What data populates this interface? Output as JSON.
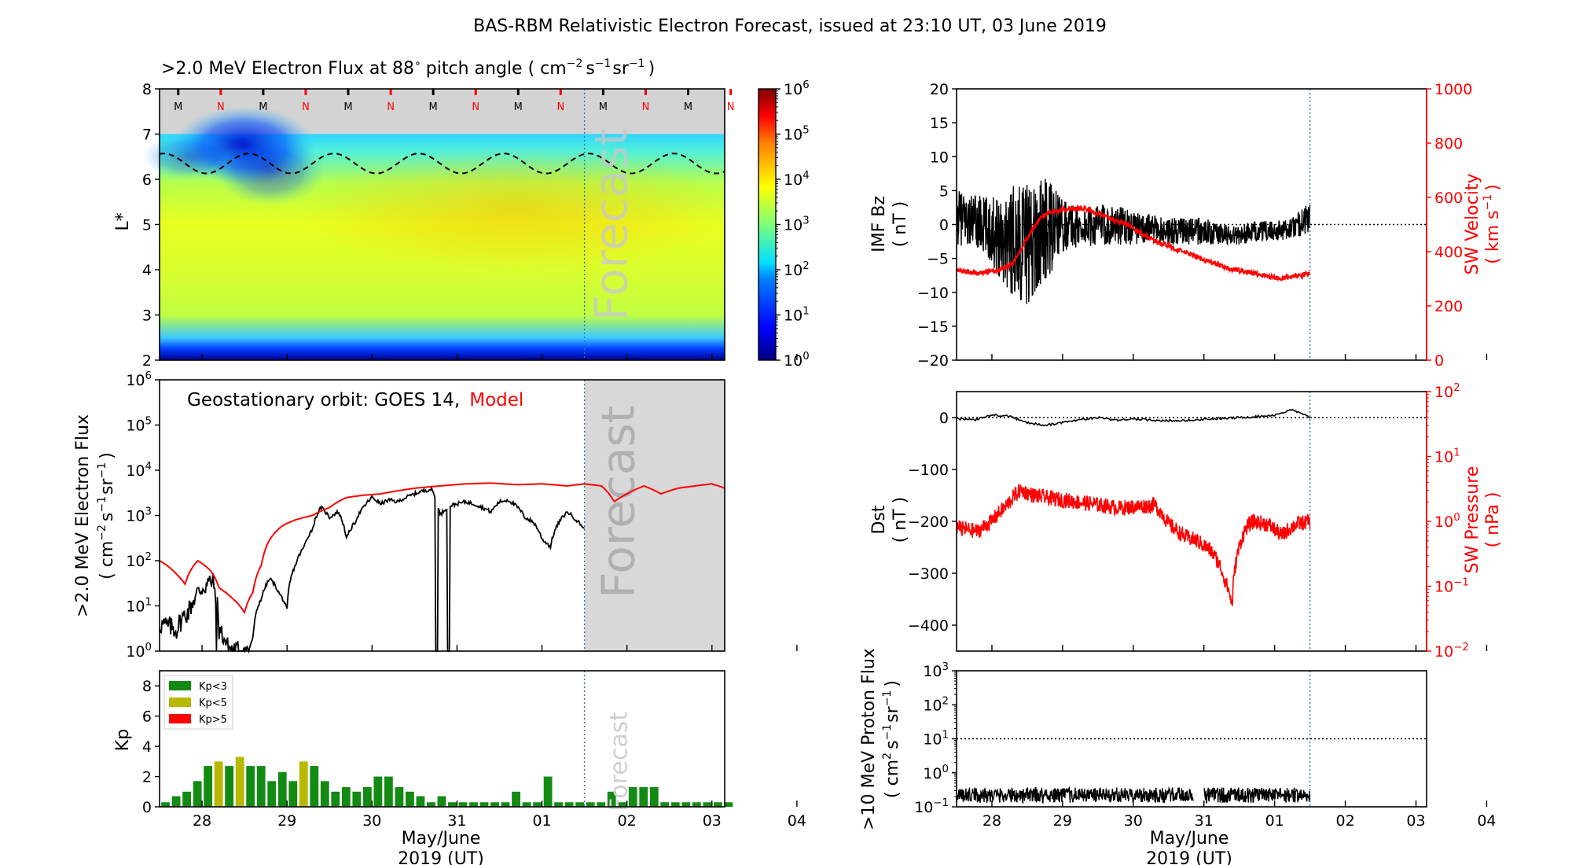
{
  "figure": {
    "title": "BAS-RBM Relativistic Electron Forecast, issued at 23:10 UT, 03 June 2019"
  },
  "colors": {
    "black": "#000000",
    "red": "#ff0000",
    "forecast_gray": "#d8d8d8",
    "boundary_blue": "#1f77b4",
    "kp_green": "#138a13",
    "kp_yellow": "#b8b800",
    "kp_red": "#ff0000"
  },
  "day_labels": [
    "28",
    "29",
    "30",
    "31",
    "01",
    "02",
    "03",
    "04"
  ],
  "x_axis": {
    "label_line1": "May/June",
    "label_line2": "2019 (UT)"
  },
  "chart_data": [
    {
      "id": "heatmap",
      "type": "heatmap",
      "title_text": ">2.0 MeV Electron Flux at 88",
      "title_deg": "∘",
      "title_units": "pitch angle ( cm",
      "title_units_exps": [
        "−2",
        "−1",
        "−1"
      ],
      "ylabel": "L*",
      "ylim": [
        2,
        8
      ],
      "yticks": [
        2,
        3,
        4,
        5,
        6,
        7,
        8
      ],
      "x_range_days": [
        0,
        6.65
      ],
      "forecast_start_day": 5.0,
      "forecast_label": "Forecast",
      "orbit_markers": [
        "M",
        "N",
        "M",
        "N",
        "M",
        "N",
        "M",
        "N",
        "M",
        "N",
        "M",
        "N",
        "M",
        "N"
      ],
      "colorbar_log_range": [
        0,
        6
      ],
      "colorbar_ticks": [
        "10^0",
        "10^1",
        "10^2",
        "10^3",
        "10^4",
        "10^5",
        "10^6"
      ],
      "magnetopause_L_mean": 6.35,
      "magnetopause_L_amp": 0.22
    },
    {
      "id": "geo_flux",
      "type": "line",
      "ylabel_line1": ">2.0 MeV Electron Flux",
      "ylabel_line2": "( cm",
      "ylog_range": [
        0,
        6
      ],
      "yticks": [
        "10^0",
        "10^1",
        "10^2",
        "10^3",
        "10^4",
        "10^5",
        "10^6"
      ],
      "legend_prefix": "Geostationary orbit:   GOES 14,",
      "legend_model": "Model",
      "forecast_label": "Forecast",
      "series": [
        {
          "name": "GOES 14",
          "color": "#000000",
          "x_days": [
            0,
            0.2,
            0.35,
            0.5,
            0.62,
            0.7,
            0.8,
            0.9,
            1.0,
            1.05,
            1.1,
            1.2,
            1.3,
            1.4,
            1.5,
            1.6,
            1.7,
            1.8,
            1.9,
            2.0,
            2.1,
            2.2,
            2.3,
            2.4,
            2.5,
            2.6,
            2.7,
            2.8,
            2.9,
            3.0,
            3.1,
            3.2,
            3.3,
            3.4,
            3.5,
            3.6,
            3.7,
            3.8,
            3.9,
            4.0,
            4.1,
            4.2,
            4.3,
            4.4,
            4.5,
            4.6,
            4.7,
            4.8,
            4.9,
            5.0
          ],
          "y_values": [
            4,
            3,
            8,
            25,
            35,
            3,
            1.2,
            1,
            1,
            1,
            2,
            15,
            40,
            20,
            8,
            80,
            200,
            500,
            1500,
            900,
            1200,
            300,
            700,
            1500,
            2500,
            1800,
            2200,
            2000,
            2500,
            3000,
            3500,
            3800,
            1000,
            1600,
            1800,
            2000,
            1800,
            1500,
            1200,
            2000,
            2200,
            1600,
            900,
            700,
            300,
            200,
            700,
            1200,
            800,
            500
          ]
        },
        {
          "name": "Model",
          "color": "#ff0000",
          "x_days": [
            0,
            0.2,
            0.3,
            0.45,
            0.6,
            0.7,
            0.85,
            1.0,
            1.1,
            1.2,
            1.3,
            1.45,
            1.6,
            1.8,
            2.0,
            2.2,
            2.4,
            2.6,
            2.8,
            3.0,
            3.3,
            3.6,
            3.9,
            4.2,
            4.5,
            4.8,
            5.0,
            5.2,
            5.35,
            5.5,
            5.7,
            5.9,
            6.1,
            6.3,
            6.5,
            6.65
          ],
          "y_values": [
            100,
            50,
            30,
            100,
            60,
            25,
            15,
            7,
            20,
            80,
            300,
            600,
            800,
            1000,
            1500,
            2500,
            2800,
            3000,
            3500,
            4000,
            4500,
            5000,
            5200,
            4800,
            5000,
            4500,
            5000,
            4500,
            2000,
            3000,
            4500,
            3000,
            4000,
            4500,
            5000,
            4000
          ]
        }
      ]
    },
    {
      "id": "kp",
      "type": "bar",
      "ylabel": "Kp",
      "ylim": [
        0,
        9
      ],
      "yticks": [
        0,
        2,
        4,
        6,
        8
      ],
      "legend": [
        {
          "label": "Kp<3",
          "color": "#138a13"
        },
        {
          "label": "Kp<5",
          "color": "#b8b800"
        },
        {
          "label": "Kp>5",
          "color": "#ff0000"
        }
      ],
      "forecast_label": "Forecast",
      "bar_width_days": 0.1,
      "x_days": [
        0.0,
        0.125,
        0.25,
        0.375,
        0.5,
        0.625,
        0.75,
        0.875,
        1.0,
        1.125,
        1.25,
        1.375,
        1.5,
        1.625,
        1.75,
        1.875,
        2.0,
        2.125,
        2.25,
        2.375,
        2.5,
        2.625,
        2.75,
        2.875,
        3.0,
        3.125,
        3.25,
        3.375,
        3.5,
        3.625,
        3.75,
        3.875,
        4.0,
        4.125,
        4.25,
        4.375,
        4.5,
        4.625,
        4.75,
        4.875,
        5.0,
        5.125,
        5.25,
        5.375,
        5.5,
        5.625,
        5.75,
        5.875,
        6.0,
        6.125,
        6.25,
        6.375,
        6.5,
        6.625
      ],
      "values": [
        0.3,
        0.7,
        1.0,
        1.7,
        2.7,
        3.0,
        2.7,
        3.3,
        2.7,
        2.7,
        1.7,
        2.3,
        1.7,
        3.0,
        2.7,
        1.7,
        1.0,
        1.3,
        1.0,
        1.3,
        2.0,
        2.0,
        1.3,
        1.0,
        0.7,
        0.3,
        0.7,
        0.3,
        0.3,
        0.3,
        0.3,
        0.3,
        0.3,
        1.0,
        0.3,
        0.3,
        2.0,
        0.3,
        0.3,
        0.3,
        0.3,
        0.3,
        1.0,
        0.3,
        1.3,
        1.3,
        1.3,
        0.3,
        0.3,
        0.3,
        0.3,
        0.3,
        0.3,
        0.3
      ],
      "colors": [
        "g",
        "g",
        "g",
        "g",
        "g",
        "y",
        "g",
        "y",
        "g",
        "g",
        "g",
        "g",
        "g",
        "y",
        "g",
        "g",
        "g",
        "g",
        "g",
        "g",
        "g",
        "g",
        "g",
        "g",
        "g",
        "g",
        "g",
        "g",
        "g",
        "g",
        "g",
        "g",
        "g",
        "g",
        "g",
        "g",
        "g",
        "g",
        "g",
        "g",
        "g",
        "g",
        "g",
        "g",
        "g",
        "g",
        "g",
        "g",
        "g",
        "g",
        "g",
        "g",
        "g",
        "g"
      ]
    },
    {
      "id": "imf",
      "type": "line",
      "ylabel_left_line1": "IMF Bz",
      "ylabel_left_line2": "( nT )",
      "ylim_left": [
        -20,
        20
      ],
      "yticks_left": [
        "−20",
        "−15",
        "−10",
        "−5",
        "0",
        "5",
        "10",
        "15",
        "20"
      ],
      "ylabel_right_line1": "SW Velocity",
      "ylabel_right_line2": "( km s",
      "ylabel_right_exp": "−1",
      "ylim_right": [
        0,
        1000
      ],
      "yticks_right": [
        "0",
        "200",
        "400",
        "600",
        "800",
        "1000"
      ],
      "series": [
        {
          "name": "IMF Bz",
          "color": "#000000",
          "x_days": [
            0,
            0.25,
            0.5,
            0.75,
            1.0,
            1.25,
            1.5,
            1.75,
            2.0,
            2.25,
            2.5,
            2.75,
            3.0,
            3.25,
            3.5,
            3.75,
            4.0,
            4.25,
            4.5,
            4.75,
            5.0
          ],
          "y_values": [
            1,
            0.5,
            -1,
            -2,
            -3,
            -1,
            0,
            -0.5,
            0,
            0,
            -0.5,
            -0.5,
            -1,
            -1,
            -1,
            -1.5,
            -1.5,
            -1,
            -1,
            -0.5,
            1
          ],
          "noise_amp": [
            4,
            4,
            5,
            8,
            9,
            8,
            4,
            3,
            3,
            3,
            2.5,
            2,
            2,
            2,
            2,
            1.5,
            1.5,
            1.5,
            1.5,
            1.5,
            2.5
          ]
        },
        {
          "name": "SW Velocity",
          "color": "#ff0000",
          "x_days": [
            0,
            0.3,
            0.6,
            0.8,
            1.0,
            1.2,
            1.4,
            1.6,
            1.8,
            2.0,
            2.2,
            2.4,
            2.6,
            2.8,
            3.0,
            3.2,
            3.4,
            3.6,
            3.8,
            4.0,
            4.2,
            4.4,
            4.6,
            4.8,
            5.0
          ],
          "y_values": [
            330,
            320,
            330,
            360,
            450,
            530,
            550,
            560,
            560,
            540,
            520,
            500,
            470,
            440,
            420,
            400,
            380,
            360,
            340,
            330,
            320,
            310,
            300,
            310,
            320
          ]
        }
      ],
      "hline_bz": 0
    },
    {
      "id": "dst",
      "type": "line",
      "ylabel_left_line1": "Dst",
      "ylabel_left_line2": "( nT )",
      "ylim_left": [
        -450,
        50
      ],
      "yticks_left": [
        "−400",
        "−300",
        "−200",
        "−100",
        "0"
      ],
      "ylabel_right_line1": "SW Pressure",
      "ylabel_right_line2": "( nPa )",
      "ylog_right": [
        -2,
        2
      ],
      "yticks_right": [
        "10^−2",
        "10^−1",
        "10^0",
        "10^1",
        "10^2"
      ],
      "series": [
        {
          "name": "Dst",
          "color": "#000000",
          "x_days": [
            0,
            0.25,
            0.5,
            0.75,
            1.0,
            1.25,
            1.5,
            1.75,
            2.0,
            2.25,
            2.5,
            2.75,
            3.0,
            3.25,
            3.5,
            3.75,
            4.0,
            4.25,
            4.5,
            4.75,
            5.0
          ],
          "y_values": [
            -2,
            -5,
            5,
            2,
            -10,
            -15,
            -10,
            -5,
            0,
            -5,
            -3,
            -5,
            -6,
            -5,
            -3,
            -2,
            0,
            2,
            5,
            15,
            0
          ]
        },
        {
          "name": "SW Pressure",
          "color": "#ff0000",
          "x_days": [
            0,
            0.3,
            0.5,
            0.7,
            0.9,
            1.1,
            1.4,
            1.7,
            2.0,
            2.3,
            2.6,
            2.8,
            3.0,
            3.2,
            3.4,
            3.6,
            3.8,
            3.9,
            4.0,
            4.1,
            4.2,
            4.4,
            4.6,
            4.8,
            5.0
          ],
          "y_values": [
            0.8,
            0.7,
            1.0,
            1.7,
            3.0,
            2.5,
            2.2,
            2.0,
            1.8,
            1.6,
            1.7,
            1.8,
            0.9,
            0.6,
            0.5,
            0.35,
            0.12,
            0.05,
            0.4,
            0.8,
            1.0,
            0.9,
            0.6,
            0.9,
            1.0
          ],
          "noise_amp": 0.12
        }
      ],
      "hline_dst": 0
    },
    {
      "id": "proton",
      "type": "line",
      "ylabel_line1": ">10 MeV Proton Flux",
      "ylabel_line2": "( cm",
      "ylog_range": [
        -1,
        3
      ],
      "yticks": [
        "10^−1",
        "10^0",
        "10^1",
        "10^2",
        "10^3"
      ],
      "threshold": 10,
      "series": [
        {
          "name": ">10 MeV Proton Flux",
          "color": "#000000",
          "x_days": [
            0,
            5.0
          ],
          "y_values": [
            0.22,
            0.22
          ],
          "gap_days": [
            3.35,
            3.5
          ]
        }
      ]
    }
  ]
}
